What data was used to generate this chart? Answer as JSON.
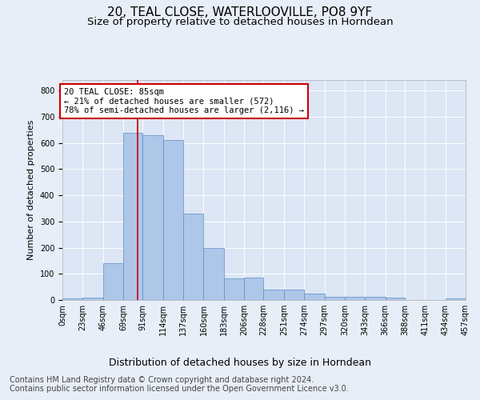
{
  "title": "20, TEAL CLOSE, WATERLOOVILLE, PO8 9YF",
  "subtitle": "Size of property relative to detached houses in Horndean",
  "xlabel": "Distribution of detached houses by size in Horndean",
  "ylabel": "Number of detached properties",
  "footer_line1": "Contains HM Land Registry data © Crown copyright and database right 2024.",
  "footer_line2": "Contains public sector information licensed under the Open Government Licence v3.0.",
  "bin_edges": [
    0,
    23,
    46,
    69,
    91,
    114,
    137,
    160,
    183,
    206,
    228,
    251,
    274,
    297,
    320,
    343,
    366,
    388,
    411,
    434,
    457
  ],
  "bin_heights": [
    6,
    8,
    142,
    637,
    630,
    610,
    330,
    200,
    83,
    85,
    40,
    40,
    25,
    12,
    12,
    12,
    8,
    0,
    0,
    5
  ],
  "bar_color": "#aec6e8",
  "bar_edge_color": "#5b8cc8",
  "property_size": 85,
  "vline_color": "#cc0000",
  "annotation_text": "20 TEAL CLOSE: 85sqm\n← 21% of detached houses are smaller (572)\n78% of semi-detached houses are larger (2,116) →",
  "annotation_box_color": "#cc0000",
  "ylim": [
    0,
    840
  ],
  "yticks": [
    0,
    100,
    200,
    300,
    400,
    500,
    600,
    700,
    800
  ],
  "background_color": "#e8eef7",
  "plot_background": "#dce6f5",
  "grid_color": "#ffffff",
  "title_fontsize": 11,
  "subtitle_fontsize": 9.5,
  "tick_label_fontsize": 7,
  "xlabel_fontsize": 9,
  "ylabel_fontsize": 8,
  "footer_fontsize": 7,
  "annotation_fontsize": 7.5
}
